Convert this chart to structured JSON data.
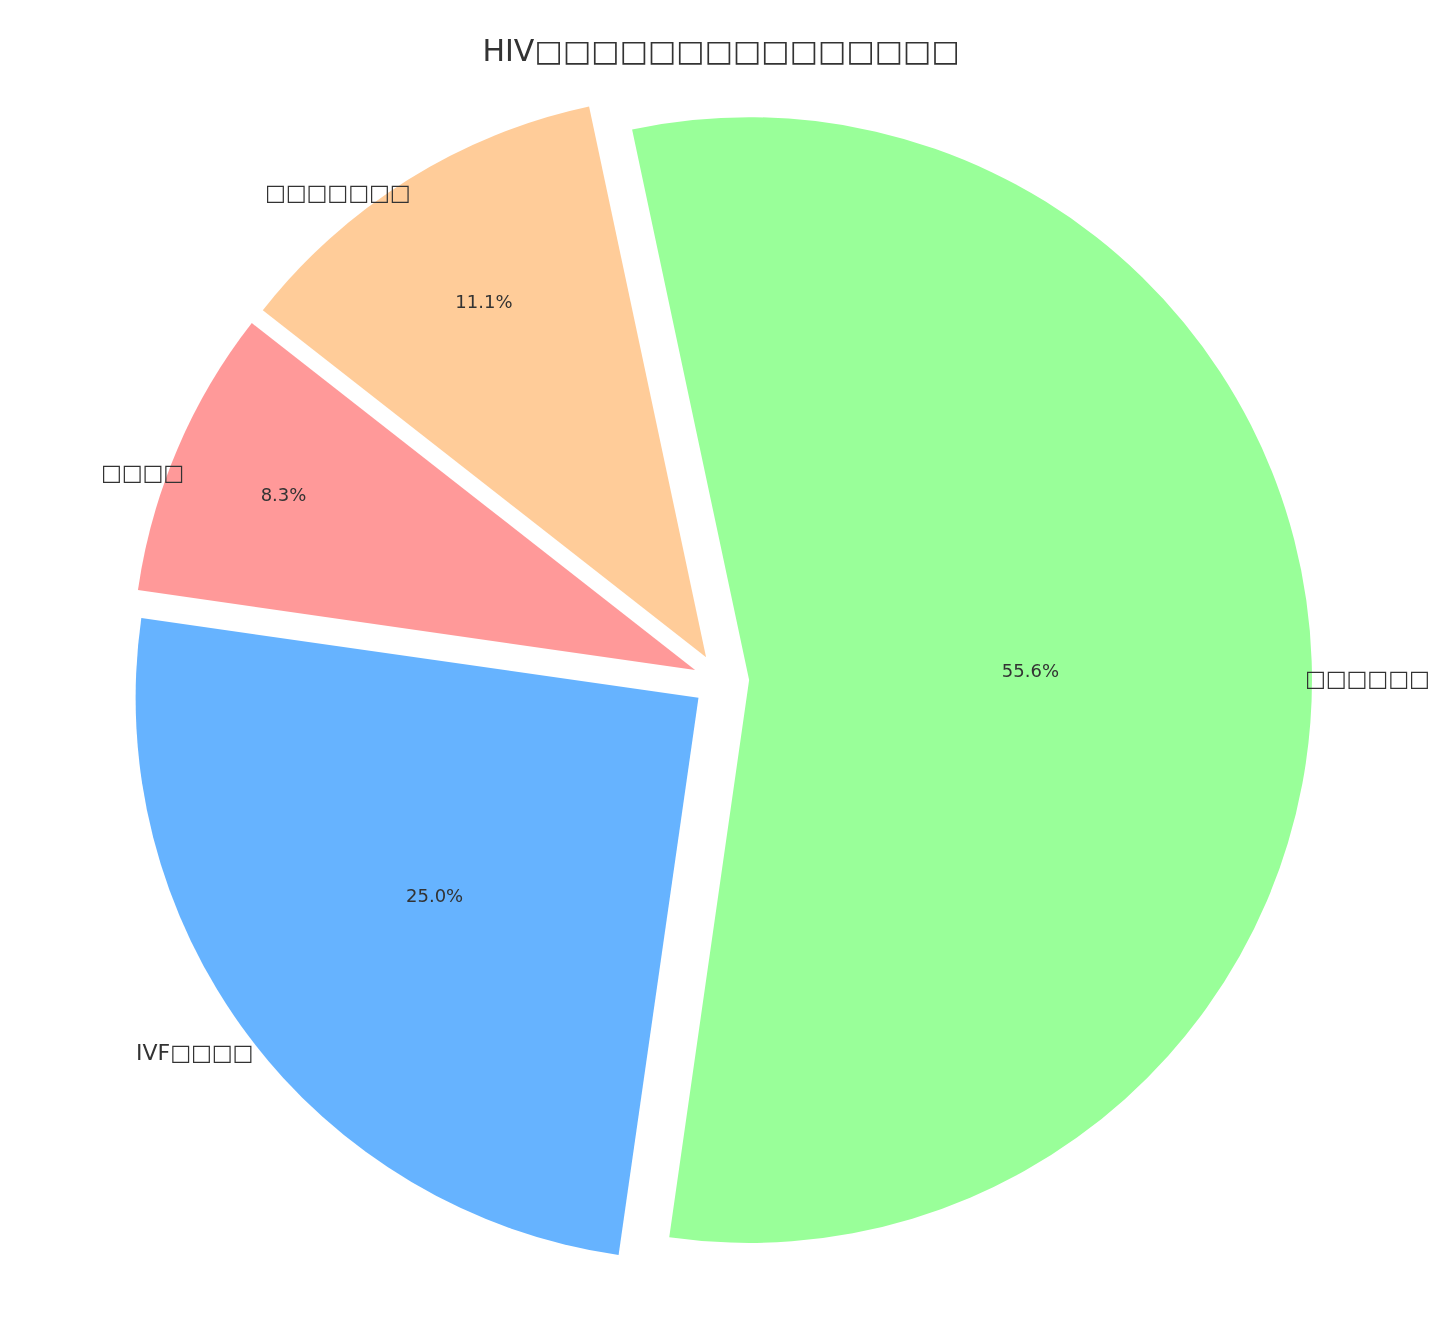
{
  "chart_data": {
    "type": "pie",
    "title": "HIV□□□□□□□□□□□□□□□",
    "categories": [
      "□□□□□□",
      "IVF□□□□",
      "□□□□",
      "□□□□□□□"
    ],
    "values": [
      55.6,
      25.0,
      8.3,
      11.1
    ],
    "colors": [
      "#99ff99",
      "#66b3ff",
      "#ff9999",
      "#ffcc99"
    ],
    "value_labels": [
      "55.6%",
      "25.0%",
      "8.3%",
      "11.1%"
    ],
    "legend": false
  }
}
